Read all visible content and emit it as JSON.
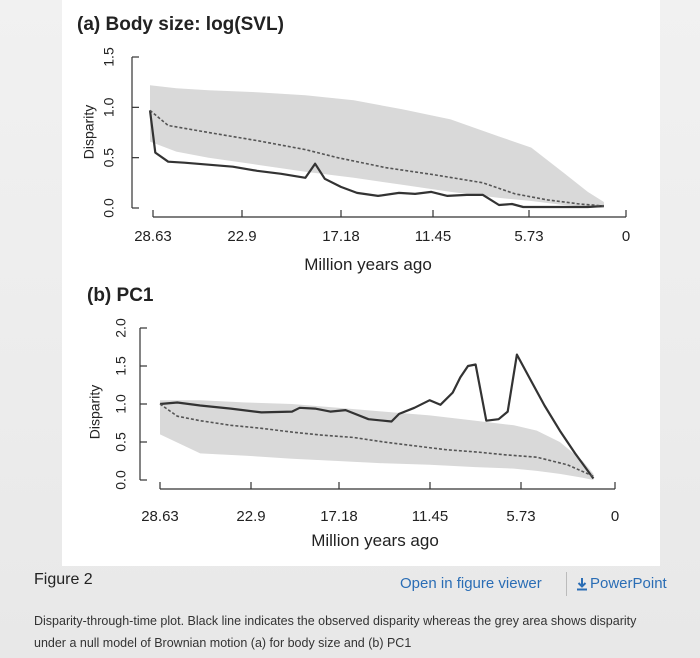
{
  "figure": {
    "label": "Figure 2",
    "open_viewer_label": "Open in figure viewer",
    "powerpoint_label": "PowerPoint",
    "caption": "Disparity-through-time plot. Black line indicates the observed disparity whereas the grey area shows disparity under a null model of Brownian motion (a) for body size and (b) PC1"
  },
  "colors": {
    "observed": "#333333",
    "null_mean": "#555555",
    "null_band": "#d9d9d9",
    "link": "#2a6db5"
  },
  "chart_data": [
    {
      "type": "line",
      "title": "(a) Body size: log(SVL)",
      "xlabel": "Million years ago",
      "ylabel": "Disparity",
      "x_tick_labels": [
        "28.63",
        "22.9",
        "17.18",
        "11.45",
        "5.73",
        "0"
      ],
      "y_tick_labels": [
        "0.0",
        "0.5",
        "1.0",
        "1.5"
      ],
      "xlim": [
        28.63,
        0
      ],
      "ylim": [
        0,
        1.5
      ],
      "series": [
        {
          "style": "solid",
          "x": [
            28.63,
            28.3,
            27.5,
            26.5,
            25,
            23.5,
            22,
            20.5,
            19,
            18.4,
            17.8,
            16.8,
            15.8,
            14.5,
            13.2,
            12.2,
            11.2,
            10.2,
            9.0,
            8.0,
            7.0,
            6.2,
            5.5,
            4.5,
            3.0,
            1.5,
            0.5
          ],
          "values": [
            0.97,
            0.55,
            0.46,
            0.45,
            0.43,
            0.41,
            0.37,
            0.34,
            0.3,
            0.44,
            0.29,
            0.21,
            0.15,
            0.12,
            0.15,
            0.14,
            0.16,
            0.12,
            0.13,
            0.13,
            0.03,
            0.04,
            0.01,
            0.01,
            0.01,
            0.01,
            0.02
          ]
        },
        {
          "style": "dashed",
          "x": [
            28.63,
            27.5,
            25,
            22,
            19,
            17,
            14,
            11,
            8,
            6,
            4,
            2,
            0.5
          ],
          "values": [
            0.97,
            0.82,
            0.75,
            0.67,
            0.58,
            0.5,
            0.4,
            0.33,
            0.25,
            0.14,
            0.08,
            0.04,
            0.02
          ]
        }
      ],
      "null_band": {
        "x": [
          28.63,
          27,
          25,
          22,
          19,
          16,
          13,
          10,
          7,
          5,
          3,
          1.5,
          0.5
        ],
        "upper": [
          1.22,
          1.19,
          1.17,
          1.15,
          1.12,
          1.07,
          0.98,
          0.88,
          0.71,
          0.6,
          0.35,
          0.16,
          0.06
        ],
        "lower": [
          0.66,
          0.56,
          0.5,
          0.43,
          0.36,
          0.3,
          0.23,
          0.16,
          0.1,
          0.07,
          0.03,
          0.01,
          0.0
        ]
      }
    },
    {
      "type": "line",
      "title": "(b) PC1",
      "xlabel": "Million years ago",
      "ylabel": "Disparity",
      "x_tick_labels": [
        "28.63",
        "22.9",
        "17.18",
        "11.45",
        "5.73",
        "0"
      ],
      "y_tick_labels": [
        "0.0",
        "0.5",
        "1.0",
        "1.5",
        "2.0"
      ],
      "xlim": [
        28.63,
        0
      ],
      "ylim": [
        0,
        2.0
      ],
      "series": [
        {
          "style": "solid",
          "x": [
            28.63,
            27.5,
            26,
            24,
            22,
            20,
            19.5,
            18.5,
            17.5,
            16.5,
            15,
            13.5,
            13,
            12,
            11,
            10.3,
            9.5,
            9,
            8.5,
            8,
            7.3,
            6.5,
            5.9,
            5.3,
            4.5,
            3.5,
            2.5,
            1.5,
            0.3
          ],
          "values": [
            1.0,
            1.02,
            0.98,
            0.94,
            0.89,
            0.9,
            0.95,
            0.94,
            0.9,
            0.92,
            0.8,
            0.77,
            0.87,
            0.95,
            1.05,
            0.99,
            1.15,
            1.35,
            1.5,
            1.52,
            0.78,
            0.8,
            0.9,
            1.65,
            1.35,
            0.98,
            0.65,
            0.35,
            0.02
          ]
        },
        {
          "style": "dashed",
          "x": [
            28.63,
            27.5,
            26,
            24,
            22,
            20,
            18,
            16,
            14,
            12,
            10,
            8,
            6,
            4,
            2,
            0.3
          ],
          "values": [
            1.0,
            0.84,
            0.78,
            0.72,
            0.68,
            0.63,
            0.59,
            0.56,
            0.5,
            0.45,
            0.4,
            0.37,
            0.33,
            0.3,
            0.2,
            0.05
          ]
        }
      ],
      "null_band": {
        "x": [
          28.63,
          26,
          23,
          20,
          17,
          14,
          11,
          8,
          5.5,
          4,
          2.5,
          1,
          0.3
        ],
        "upper": [
          1.05,
          1.05,
          1.02,
          1.0,
          0.95,
          0.9,
          0.85,
          0.78,
          0.72,
          0.65,
          0.5,
          0.25,
          0.08
        ],
        "lower": [
          0.6,
          0.35,
          0.32,
          0.28,
          0.25,
          0.22,
          0.2,
          0.17,
          0.15,
          0.12,
          0.08,
          0.03,
          0.0
        ]
      }
    }
  ]
}
